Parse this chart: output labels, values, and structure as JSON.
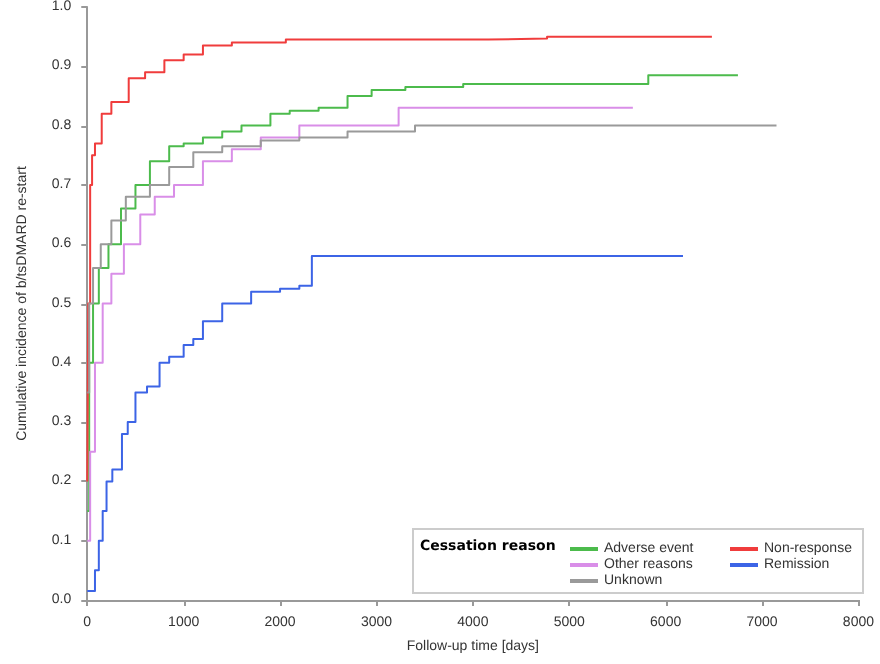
{
  "chart_data": {
    "type": "step",
    "xlabel": "Follow-up time [days]",
    "ylabel": "Cumulative incidence of b/tsDMARD re-start",
    "legend_title": "Cessation reason",
    "legend": "bottom right",
    "grid": false,
    "marker": "none",
    "line_style": "solid",
    "xlim": [
      0,
      8000
    ],
    "xticks": [
      0,
      1000,
      2000,
      3000,
      4000,
      5000,
      6000,
      7000,
      8000
    ],
    "ylim": [
      0,
      1
    ],
    "yticks": [
      {
        "value": 0,
        "label": "0.0"
      },
      0.1,
      0.2,
      0.3,
      0.4,
      0.5,
      0.6,
      0.7,
      0.8,
      0.9,
      {
        "value": 1,
        "label": "1.0"
      }
    ],
    "series": [
      {
        "name": "Adverse event",
        "color": "#4cbb4c",
        "x": [
          0,
          20,
          60,
          120,
          220,
          350,
          500,
          650,
          850,
          1000,
          1200,
          1400,
          1600,
          1900,
          2100,
          2400,
          2700,
          2950,
          3300,
          3900,
          4300,
          5820,
          6750
        ],
        "values": [
          0.15,
          0.4,
          0.5,
          0.56,
          0.6,
          0.66,
          0.7,
          0.74,
          0.765,
          0.77,
          0.78,
          0.79,
          0.8,
          0.82,
          0.825,
          0.83,
          0.85,
          0.86,
          0.865,
          0.87,
          0.87,
          0.885,
          0.885
        ]
      },
      {
        "name": "Non-response",
        "color": "#f03c3c",
        "x": [
          0,
          10,
          30,
          50,
          80,
          150,
          250,
          430,
          600,
          800,
          1000,
          1200,
          1500,
          2060,
          4160,
          4770,
          6480
        ],
        "values": [
          0.2,
          0.5,
          0.7,
          0.75,
          0.77,
          0.82,
          0.84,
          0.88,
          0.89,
          0.91,
          0.92,
          0.935,
          0.94,
          0.945,
          0.947,
          0.95,
          0.95
        ]
      },
      {
        "name": "Other reasons",
        "color": "#d98ee8",
        "x": [
          0,
          30,
          80,
          160,
          250,
          380,
          550,
          700,
          900,
          1200,
          1500,
          1800,
          2200,
          3030,
          3230,
          5660
        ],
        "values": [
          0.1,
          0.25,
          0.4,
          0.5,
          0.55,
          0.6,
          0.65,
          0.68,
          0.7,
          0.74,
          0.76,
          0.78,
          0.8,
          0.8,
          0.83,
          0.83
        ]
      },
      {
        "name": "Remission",
        "color": "#3c64e6",
        "x": [
          0,
          80,
          120,
          160,
          200,
          260,
          360,
          420,
          500,
          620,
          750,
          850,
          1000,
          1100,
          1200,
          1400,
          1700,
          2000,
          2200,
          2330,
          6180
        ],
        "values": [
          0.015,
          0.05,
          0.1,
          0.15,
          0.2,
          0.22,
          0.28,
          0.3,
          0.35,
          0.36,
          0.4,
          0.41,
          0.43,
          0.44,
          0.47,
          0.5,
          0.52,
          0.525,
          0.53,
          0.58,
          0.58
        ]
      },
      {
        "name": "Unknown",
        "color": "#9a9a9a",
        "x": [
          0,
          20,
          60,
          140,
          250,
          400,
          650,
          850,
          1100,
          1400,
          1800,
          2200,
          2700,
          3400,
          7150
        ],
        "values": [
          0.35,
          0.5,
          0.56,
          0.6,
          0.64,
          0.68,
          0.7,
          0.73,
          0.755,
          0.765,
          0.775,
          0.78,
          0.79,
          0.8,
          0.8
        ]
      }
    ]
  }
}
